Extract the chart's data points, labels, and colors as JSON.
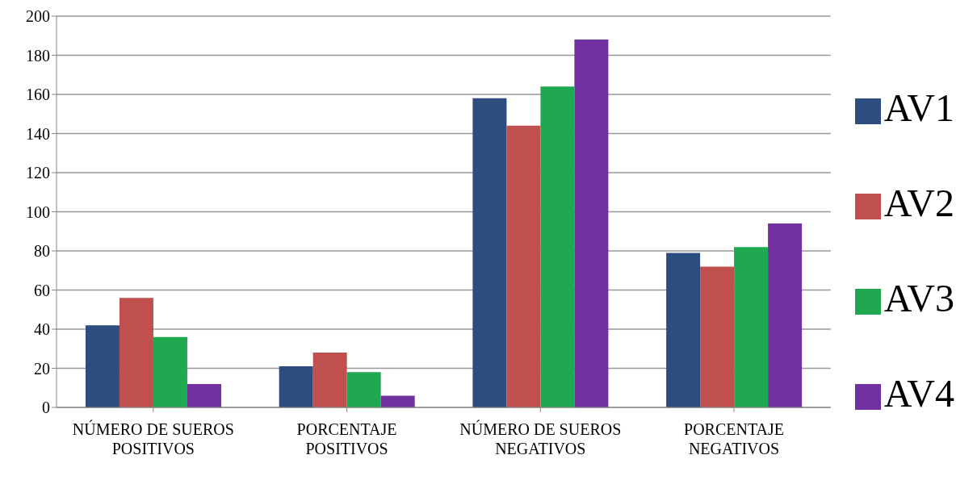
{
  "chart_data": {
    "type": "bar",
    "categories": [
      "NÚMERO DE SUEROS POSITIVOS",
      "PORCENTAJE POSITIVOS",
      "NÚMERO DE SUEROS NEGATIVOS",
      "PORCENTAJE NEGATIVOS"
    ],
    "series": [
      {
        "name": "AV1",
        "color": "#2e4d7f",
        "values": [
          42,
          21,
          158,
          79
        ]
      },
      {
        "name": "AV2",
        "color": "#c0504d",
        "values": [
          56,
          28,
          144,
          72
        ]
      },
      {
        "name": "AV3",
        "color": "#1fa84f",
        "values": [
          36,
          18,
          164,
          82
        ]
      },
      {
        "name": "AV4",
        "color": "#7030a0",
        "values": [
          12,
          6,
          188,
          94
        ]
      }
    ],
    "ylim": [
      0,
      200
    ],
    "yticks": [
      0,
      20,
      40,
      60,
      80,
      100,
      120,
      140,
      160,
      180,
      200
    ],
    "grid": "y",
    "legend": "right"
  }
}
